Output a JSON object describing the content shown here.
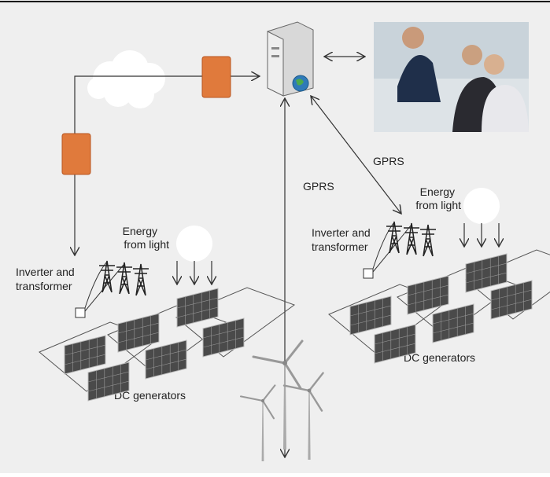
{
  "labels": {
    "gprs_vertical": "GPRS",
    "gprs_diagonal": "GPRS",
    "left": {
      "energy": [
        "Energy",
        "from light"
      ],
      "inverter": [
        "Inverter and",
        "transformer"
      ],
      "generators": "DC generators"
    },
    "right": {
      "energy": [
        "Energy",
        "from light"
      ],
      "inverter": [
        "Inverter and",
        "transformer"
      ],
      "generators": "DC generators"
    }
  }
}
